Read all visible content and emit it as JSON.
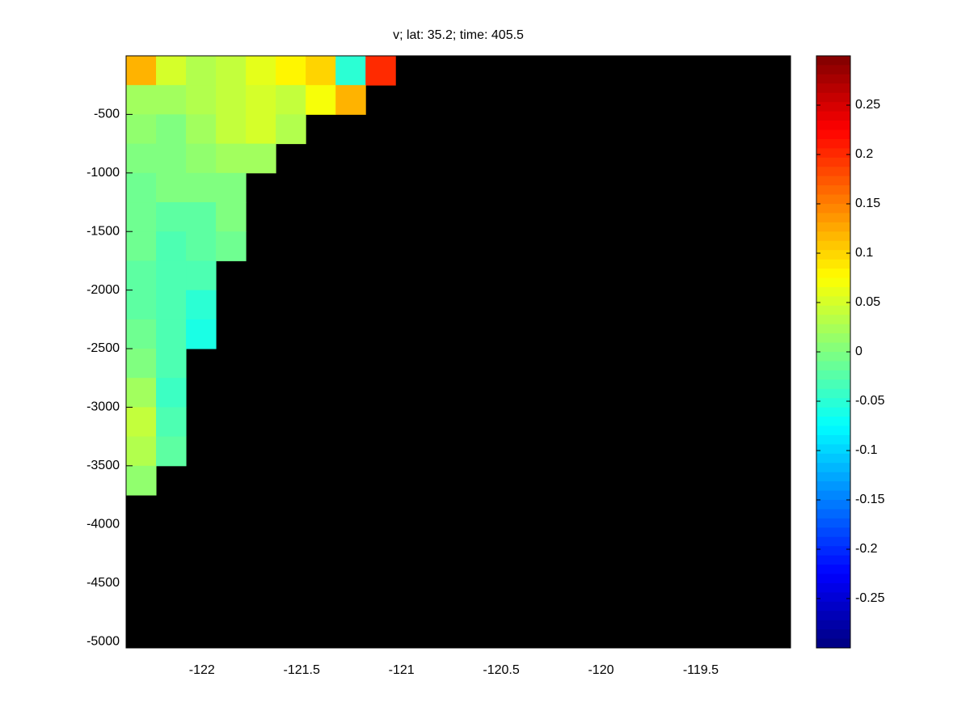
{
  "chart_data": {
    "type": "heatmap",
    "title": "v; lat: 35.2; time: 405.5",
    "x": [
      -122.305,
      -122.155,
      -122.005,
      -121.855,
      -121.705,
      -121.555,
      -121.405,
      -121.255,
      -121.105,
      -120.955
    ],
    "y": [
      -125,
      -375,
      -625,
      -875,
      -1125,
      -1375,
      -1625,
      -1875,
      -2125,
      -2375,
      -2625,
      -2875,
      -3125,
      -3375,
      -3625
    ],
    "values": [
      [
        0.12,
        0.05,
        0.03,
        0.04,
        0.06,
        0.08,
        0.1,
        -0.05,
        0.2,
        null
      ],
      [
        0.02,
        0.02,
        0.03,
        0.04,
        0.05,
        0.04,
        0.07,
        0.12,
        null,
        null
      ],
      [
        0.01,
        0.0,
        0.02,
        0.04,
        0.05,
        0.03,
        null,
        null,
        null,
        null
      ],
      [
        0.0,
        0.0,
        0.01,
        0.02,
        0.02,
        null,
        null,
        null,
        null,
        null
      ],
      [
        -0.01,
        0.0,
        0.0,
        0.0,
        null,
        null,
        null,
        null,
        null,
        null
      ],
      [
        -0.01,
        -0.02,
        -0.02,
        0.0,
        null,
        null,
        null,
        null,
        null,
        null
      ],
      [
        -0.01,
        -0.03,
        -0.02,
        -0.01,
        null,
        null,
        null,
        null,
        null,
        null
      ],
      [
        -0.02,
        -0.03,
        -0.03,
        null,
        null,
        null,
        null,
        null,
        null,
        null
      ],
      [
        -0.02,
        -0.03,
        -0.05,
        null,
        null,
        null,
        null,
        null,
        null,
        null
      ],
      [
        -0.01,
        -0.03,
        -0.06,
        null,
        null,
        null,
        null,
        null,
        null,
        null
      ],
      [
        0.0,
        -0.03,
        null,
        null,
        null,
        null,
        null,
        null,
        null,
        null
      ],
      [
        0.02,
        -0.04,
        null,
        null,
        null,
        null,
        null,
        null,
        null,
        null
      ],
      [
        0.04,
        -0.03,
        null,
        null,
        null,
        null,
        null,
        null,
        null,
        null
      ],
      [
        0.03,
        -0.02,
        null,
        null,
        null,
        null,
        null,
        null,
        null,
        null
      ],
      [
        0.01,
        null,
        null,
        null,
        null,
        null,
        null,
        null,
        null,
        null
      ]
    ],
    "xlim": [
      -122.38,
      -119.05
    ],
    "ylim": [
      -5055,
      0
    ],
    "xticks": [
      -122,
      -121.5,
      -121,
      -120.5,
      -120,
      -119.5
    ],
    "yticks": [
      -5000,
      -4500,
      -4000,
      -3500,
      -3000,
      -2500,
      -2000,
      -1500,
      -1000,
      -500
    ],
    "colormap": "jet",
    "clim": [
      -0.3,
      0.3
    ],
    "cticks": [
      -0.25,
      -0.2,
      -0.15,
      -0.1,
      -0.05,
      0,
      0.05,
      0.1,
      0.15,
      0.2,
      0.25
    ],
    "missing_color": "#000000"
  }
}
